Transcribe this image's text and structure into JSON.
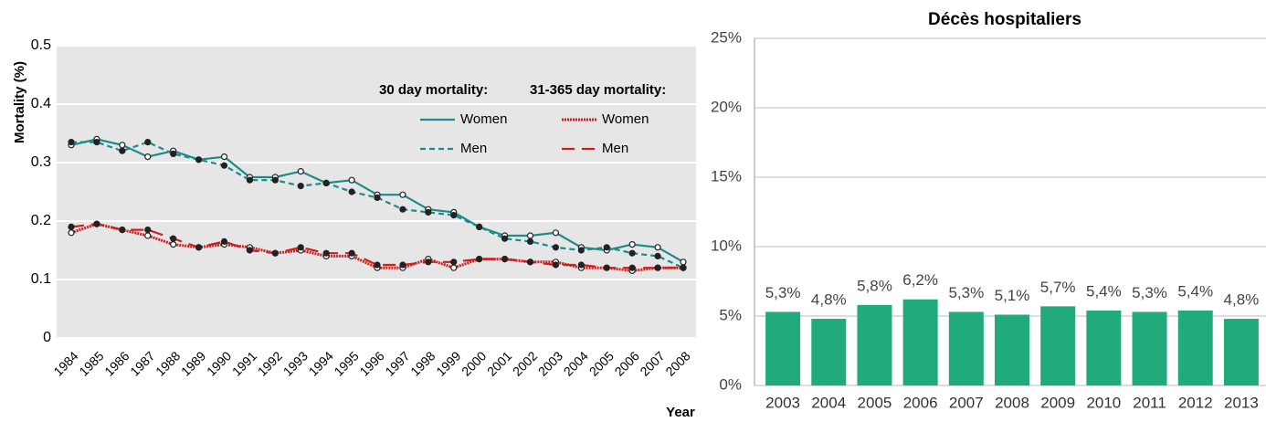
{
  "chart_data": [
    {
      "type": "line",
      "y_label": "Mortality (%)",
      "x_label": "Year",
      "legend_titles": [
        "30 day mortality:",
        "31-365 day mortality:"
      ],
      "x": [
        1984,
        1985,
        1986,
        1987,
        1988,
        1989,
        1990,
        1991,
        1992,
        1993,
        1994,
        1995,
        1996,
        1997,
        1998,
        1999,
        2000,
        2001,
        2002,
        2003,
        2004,
        2005,
        2006,
        2007,
        2008
      ],
      "xlim": [
        1984,
        2008
      ],
      "ylim": [
        0,
        0.5
      ],
      "yticks": [
        0,
        0.1,
        0.2,
        0.3,
        0.4,
        0.5
      ],
      "grid": true,
      "series": [
        {
          "name": "Women",
          "color": "#1b8c8a",
          "style": "solid",
          "values": [
            0.33,
            0.34,
            0.33,
            0.31,
            0.32,
            0.305,
            0.31,
            0.275,
            0.275,
            0.285,
            0.265,
            0.27,
            0.245,
            0.245,
            0.22,
            0.215,
            0.19,
            0.175,
            0.175,
            0.18,
            0.155,
            0.15,
            0.16,
            0.155,
            0.13
          ]
        },
        {
          "name": "Men",
          "color": "#1b8c8a",
          "style": "dashed",
          "values": [
            0.335,
            0.335,
            0.32,
            0.335,
            0.315,
            0.305,
            0.295,
            0.27,
            0.27,
            0.26,
            0.265,
            0.25,
            0.24,
            0.22,
            0.215,
            0.21,
            0.19,
            0.17,
            0.165,
            0.155,
            0.15,
            0.155,
            0.145,
            0.14,
            0.12
          ]
        },
        {
          "name": "Women",
          "color": "#cc2020",
          "style": "dotted",
          "values": [
            0.18,
            0.195,
            0.185,
            0.175,
            0.16,
            0.155,
            0.16,
            0.155,
            0.145,
            0.15,
            0.14,
            0.14,
            0.12,
            0.12,
            0.135,
            0.12,
            0.135,
            0.135,
            0.13,
            0.13,
            0.12,
            0.12,
            0.115,
            0.12,
            0.12
          ]
        },
        {
          "name": "Men",
          "color": "#cc2020",
          "style": "longdash",
          "values": [
            0.19,
            0.195,
            0.185,
            0.185,
            0.17,
            0.155,
            0.165,
            0.15,
            0.145,
            0.155,
            0.145,
            0.145,
            0.125,
            0.125,
            0.13,
            0.13,
            0.135,
            0.135,
            0.13,
            0.125,
            0.125,
            0.12,
            0.12,
            0.12,
            0.12
          ]
        }
      ]
    },
    {
      "type": "bar",
      "title": "Décès hospitaliers",
      "categories": [
        "2003",
        "2004",
        "2005",
        "2006",
        "2007",
        "2008",
        "2009",
        "2010",
        "2011",
        "2012",
        "2013"
      ],
      "values": [
        5.3,
        4.8,
        5.8,
        6.2,
        5.3,
        5.1,
        5.7,
        5.4,
        5.3,
        5.4,
        4.8
      ],
      "value_labels": [
        "5,3%",
        "4,8%",
        "5,8%",
        "6,2%",
        "5,3%",
        "5,1%",
        "5,7%",
        "5,4%",
        "5,3%",
        "5,4%",
        "4,8%"
      ],
      "color": "#21ab7c",
      "ylim": [
        0,
        25
      ],
      "yticks": [
        {
          "value": 0,
          "label": "0%"
        },
        {
          "value": 5,
          "label": "5%"
        },
        {
          "value": 10,
          "label": "10%"
        },
        {
          "value": 15,
          "label": "15%"
        },
        {
          "value": 20,
          "label": "20%"
        },
        {
          "value": 25,
          "label": "25%"
        }
      ],
      "grid": true
    }
  ]
}
